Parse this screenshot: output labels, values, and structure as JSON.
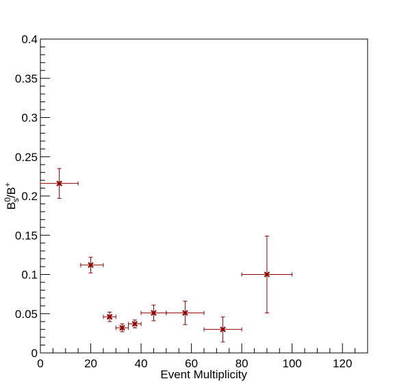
{
  "chart_data": {
    "type": "scatter",
    "title": "",
    "xlabel": "Event Multiplicity",
    "ylabel": {
      "base": "B",
      "sup": "0",
      "sub": "s",
      "slash": "/B",
      "sup2": "+"
    },
    "xlim": [
      0,
      130
    ],
    "ylim": [
      0,
      0.4
    ],
    "grid": false,
    "x_ticks": [
      {
        "value": 0,
        "label": "0"
      },
      {
        "value": 20,
        "label": "20"
      },
      {
        "value": 40,
        "label": "40"
      },
      {
        "value": 60,
        "label": "60"
      },
      {
        "value": 80,
        "label": "80"
      },
      {
        "value": 100,
        "label": "100"
      },
      {
        "value": 120,
        "label": "120"
      }
    ],
    "y_ticks": [
      {
        "value": 0,
        "label": "0"
      },
      {
        "value": 0.05,
        "label": "0.05"
      },
      {
        "value": 0.1,
        "label": "0.1"
      },
      {
        "value": 0.15,
        "label": "0.15"
      },
      {
        "value": 0.2,
        "label": "0.2"
      },
      {
        "value": 0.25,
        "label": "0.25"
      },
      {
        "value": 0.3,
        "label": "0.3"
      },
      {
        "value": 0.35,
        "label": "0.35"
      },
      {
        "value": 0.4,
        "label": "0.4"
      }
    ],
    "series": [
      {
        "color": "#8b0000",
        "marker": "x",
        "points": [
          {
            "x": 7.5,
            "y": 0.216,
            "xerr_low": 7.5,
            "xerr_high": 7.5,
            "yerr_low": 0.019,
            "yerr_high": 0.019
          },
          {
            "x": 20.0,
            "y": 0.112,
            "xerr_low": 4.0,
            "xerr_high": 5.0,
            "yerr_low": 0.01,
            "yerr_high": 0.01
          },
          {
            "x": 27.5,
            "y": 0.046,
            "xerr_low": 2.5,
            "xerr_high": 2.5,
            "yerr_low": 0.006,
            "yerr_high": 0.006
          },
          {
            "x": 32.5,
            "y": 0.032,
            "xerr_low": 2.5,
            "xerr_high": 2.5,
            "yerr_low": 0.005,
            "yerr_high": 0.005
          },
          {
            "x": 37.5,
            "y": 0.037,
            "xerr_low": 2.5,
            "xerr_high": 2.5,
            "yerr_low": 0.005,
            "yerr_high": 0.005
          },
          {
            "x": 45.0,
            "y": 0.051,
            "xerr_low": 5.0,
            "xerr_high": 5.0,
            "yerr_low": 0.01,
            "yerr_high": 0.01
          },
          {
            "x": 57.5,
            "y": 0.051,
            "xerr_low": 7.5,
            "xerr_high": 7.5,
            "yerr_low": 0.015,
            "yerr_high": 0.015
          },
          {
            "x": 72.5,
            "y": 0.03,
            "xerr_low": 7.5,
            "xerr_high": 7.5,
            "yerr_low": 0.016,
            "yerr_high": 0.016
          },
          {
            "x": 90.0,
            "y": 0.1,
            "xerr_low": 10.0,
            "xerr_high": 10.0,
            "yerr_low": 0.049,
            "yerr_high": 0.049
          }
        ]
      }
    ]
  }
}
